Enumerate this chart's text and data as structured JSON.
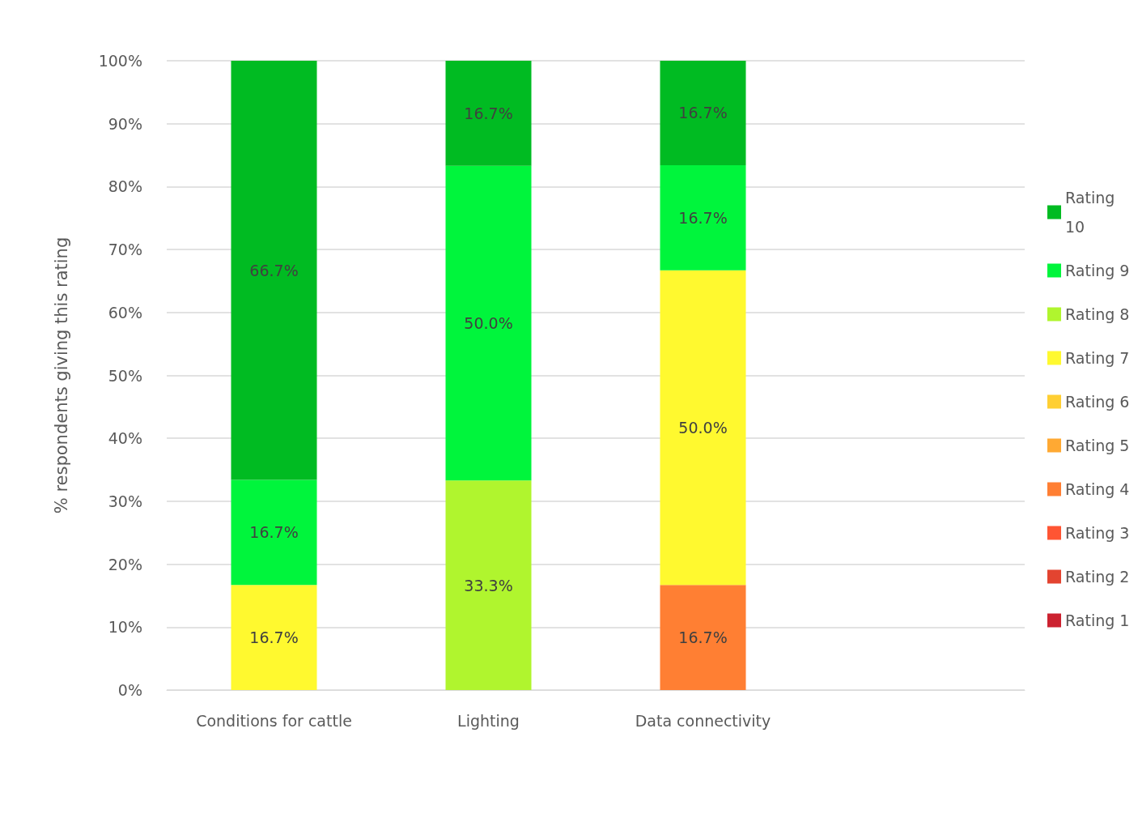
{
  "chart_data": {
    "type": "bar",
    "stacked": true,
    "ylabel": "% respondents giving this rating",
    "categories": [
      "Conditions for cattle",
      "Lighting",
      "Data connectivity",
      null
    ],
    "ylim": [
      0,
      100
    ],
    "yticks": [
      {
        "value": 0,
        "label": "0%"
      },
      {
        "value": 10,
        "label": "10%"
      },
      {
        "value": 20,
        "label": "20%"
      },
      {
        "value": 30,
        "label": "30%"
      },
      {
        "value": 40,
        "label": "40%"
      },
      {
        "value": 50,
        "label": "50%"
      },
      {
        "value": 60,
        "label": "60%"
      },
      {
        "value": 70,
        "label": "70%"
      },
      {
        "value": 80,
        "label": "80%"
      },
      {
        "value": 90,
        "label": "90%"
      },
      {
        "value": 100,
        "label": "100%"
      }
    ],
    "grid": "y",
    "legend": "right",
    "series": [
      {
        "name": "Rating 1",
        "color": "#cc2230",
        "values": [
          null,
          null,
          null,
          null
        ]
      },
      {
        "name": "Rating 2",
        "color": "#e34430",
        "values": [
          null,
          null,
          null,
          null
        ]
      },
      {
        "name": "Rating 3",
        "color": "#ff5533",
        "values": [
          null,
          null,
          null,
          null
        ]
      },
      {
        "name": "Rating 4",
        "color": "#ff7f33",
        "values": [
          null,
          null,
          16.7,
          null
        ],
        "value_labels": [
          null,
          null,
          "16.7%",
          null
        ]
      },
      {
        "name": "Rating 5",
        "color": "#ffa933",
        "values": [
          null,
          null,
          null,
          null
        ]
      },
      {
        "name": "Rating 6",
        "color": "#ffcf33",
        "values": [
          null,
          null,
          null,
          null
        ]
      },
      {
        "name": "Rating 7",
        "color": "#fff92f",
        "values": [
          16.7,
          null,
          50.0,
          null
        ],
        "value_labels": [
          "16.7%",
          null,
          "50.0%",
          null
        ]
      },
      {
        "name": "Rating 8",
        "color": "#b0f52e",
        "values": [
          null,
          33.3,
          null,
          null
        ],
        "value_labels": [
          null,
          "33.3%",
          null,
          null
        ]
      },
      {
        "name": "Rating 9",
        "color": "#00f53c",
        "values": [
          16.7,
          50.0,
          16.7,
          null
        ],
        "value_labels": [
          "16.7%",
          "50.0%",
          "16.7%",
          null
        ]
      },
      {
        "name": "Rating 10",
        "color": "#00bb22",
        "values": [
          66.7,
          16.7,
          16.7,
          null
        ],
        "value_labels": [
          "66.7%",
          "16.7%",
          "16.7%",
          null
        ]
      }
    ]
  }
}
